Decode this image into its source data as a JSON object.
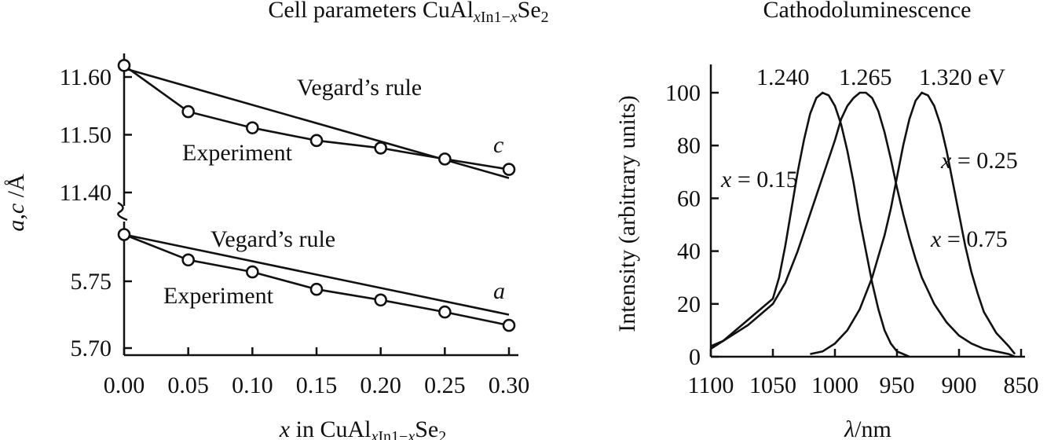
{
  "chart_data": [
    {
      "type": "line",
      "title": "Cell parameters CuAl<sub>x</sub>In<sub>1−x</sub>Se<sub>2</sub>",
      "title_text": "Cell parameters CuAlₓIn₁₋ₓSe₂",
      "xlabel": "x in CuAlₓIn₁₋ₓSe₂",
      "ylabel": "a,c /Å",
      "x_ticks": [
        "0.00",
        "0.05",
        "0.10",
        "0.15",
        "0.20",
        "0.25",
        "0.30"
      ],
      "xlim": [
        0.0,
        0.3
      ],
      "y_ticks_upper": [
        "11.60",
        "11.50",
        "11.40"
      ],
      "y_ticks_lower": [
        "5.75",
        "5.70"
      ],
      "ylim_upper": [
        11.395,
        11.65
      ],
      "ylim_lower": [
        5.698,
        5.795
      ],
      "axis_break": true,
      "series": [
        {
          "name": "Vegard's rule",
          "parameter": "c",
          "x": [
            0.0,
            0.3
          ],
          "y": [
            11.615,
            11.425
          ]
        },
        {
          "name": "Experiment",
          "parameter": "c",
          "x": [
            0.0,
            0.05,
            0.1,
            0.15,
            0.2,
            0.25,
            0.3
          ],
          "y": [
            11.62,
            11.54,
            11.512,
            11.49,
            11.477,
            11.458,
            11.44
          ]
        },
        {
          "name": "Vegard's rule",
          "parameter": "a",
          "x": [
            0.0,
            0.3
          ],
          "y": [
            5.785,
            5.725
          ]
        },
        {
          "name": "Experiment",
          "parameter": "a",
          "x": [
            0.0,
            0.05,
            0.1,
            0.15,
            0.2,
            0.25,
            0.3
          ],
          "y": [
            5.785,
            5.766,
            5.757,
            5.744,
            5.736,
            5.727,
            5.717
          ]
        }
      ],
      "annotations": {
        "vegard_upper": "Vegard’s rule",
        "experiment_upper": "Experiment",
        "c_label": "c",
        "vegard_lower": "Vegard’s rule",
        "experiment_lower": "Experiment",
        "a_label": "a"
      }
    },
    {
      "type": "line",
      "title": "Cathodoluminescence",
      "xlabel": "λ/nm",
      "ylabel": "Intensity (arbitrary units)",
      "x_ticks": [
        "1100",
        "1050",
        "1000",
        "950",
        "900",
        "850"
      ],
      "xlim": [
        1100,
        850
      ],
      "x_reversed": true,
      "y_ticks": [
        "0",
        "20",
        "40",
        "60",
        "80",
        "100"
      ],
      "ylim": [
        0,
        110
      ],
      "series": [
        {
          "name": "x = 0.15",
          "peak_label": "1.240",
          "x": [
            1100,
            1090,
            1080,
            1070,
            1060,
            1050,
            1045,
            1040,
            1035,
            1030,
            1025,
            1020,
            1015,
            1010,
            1005,
            1000,
            995,
            990,
            985,
            980,
            975,
            970,
            965,
            960,
            955,
            950,
            945,
            940
          ],
          "y": [
            3,
            6,
            10,
            14,
            18,
            22,
            30,
            42,
            56,
            70,
            82,
            92,
            98,
            100,
            99,
            95,
            88,
            78,
            66,
            52,
            40,
            28,
            18,
            10,
            5,
            2,
            1,
            0
          ]
        },
        {
          "name": "x = 0.25",
          "peak_label": "1.265",
          "x": [
            1100,
            1090,
            1080,
            1070,
            1060,
            1050,
            1040,
            1030,
            1020,
            1010,
            1000,
            995,
            990,
            985,
            980,
            975,
            970,
            965,
            960,
            955,
            950,
            945,
            940,
            935,
            930,
            920,
            910,
            900,
            890,
            880,
            870,
            860,
            855
          ],
          "y": [
            4,
            6,
            9,
            12,
            16,
            20,
            28,
            40,
            54,
            68,
            82,
            90,
            95,
            98,
            100,
            100,
            98,
            93,
            85,
            75,
            64,
            54,
            45,
            37,
            30,
            20,
            13,
            8,
            5,
            3,
            2,
            1,
            0
          ]
        },
        {
          "name": "x = 0.75",
          "peak_label": "1.320 eV",
          "x": [
            1020,
            1010,
            1000,
            990,
            980,
            970,
            960,
            955,
            950,
            945,
            940,
            935,
            930,
            925,
            920,
            915,
            910,
            905,
            900,
            895,
            890,
            885,
            880,
            870,
            860,
            855
          ],
          "y": [
            1,
            2,
            5,
            10,
            18,
            30,
            46,
            56,
            68,
            80,
            90,
            97,
            100,
            99,
            95,
            88,
            78,
            66,
            54,
            42,
            32,
            24,
            17,
            9,
            4,
            1
          ]
        }
      ],
      "annotations": {
        "peak1": "1.240",
        "peak2": "1.265",
        "peak3": "1.320 eV",
        "x015": "x = 0.15",
        "x025": "x = 0.25",
        "x075": "x = 0.75"
      }
    }
  ]
}
